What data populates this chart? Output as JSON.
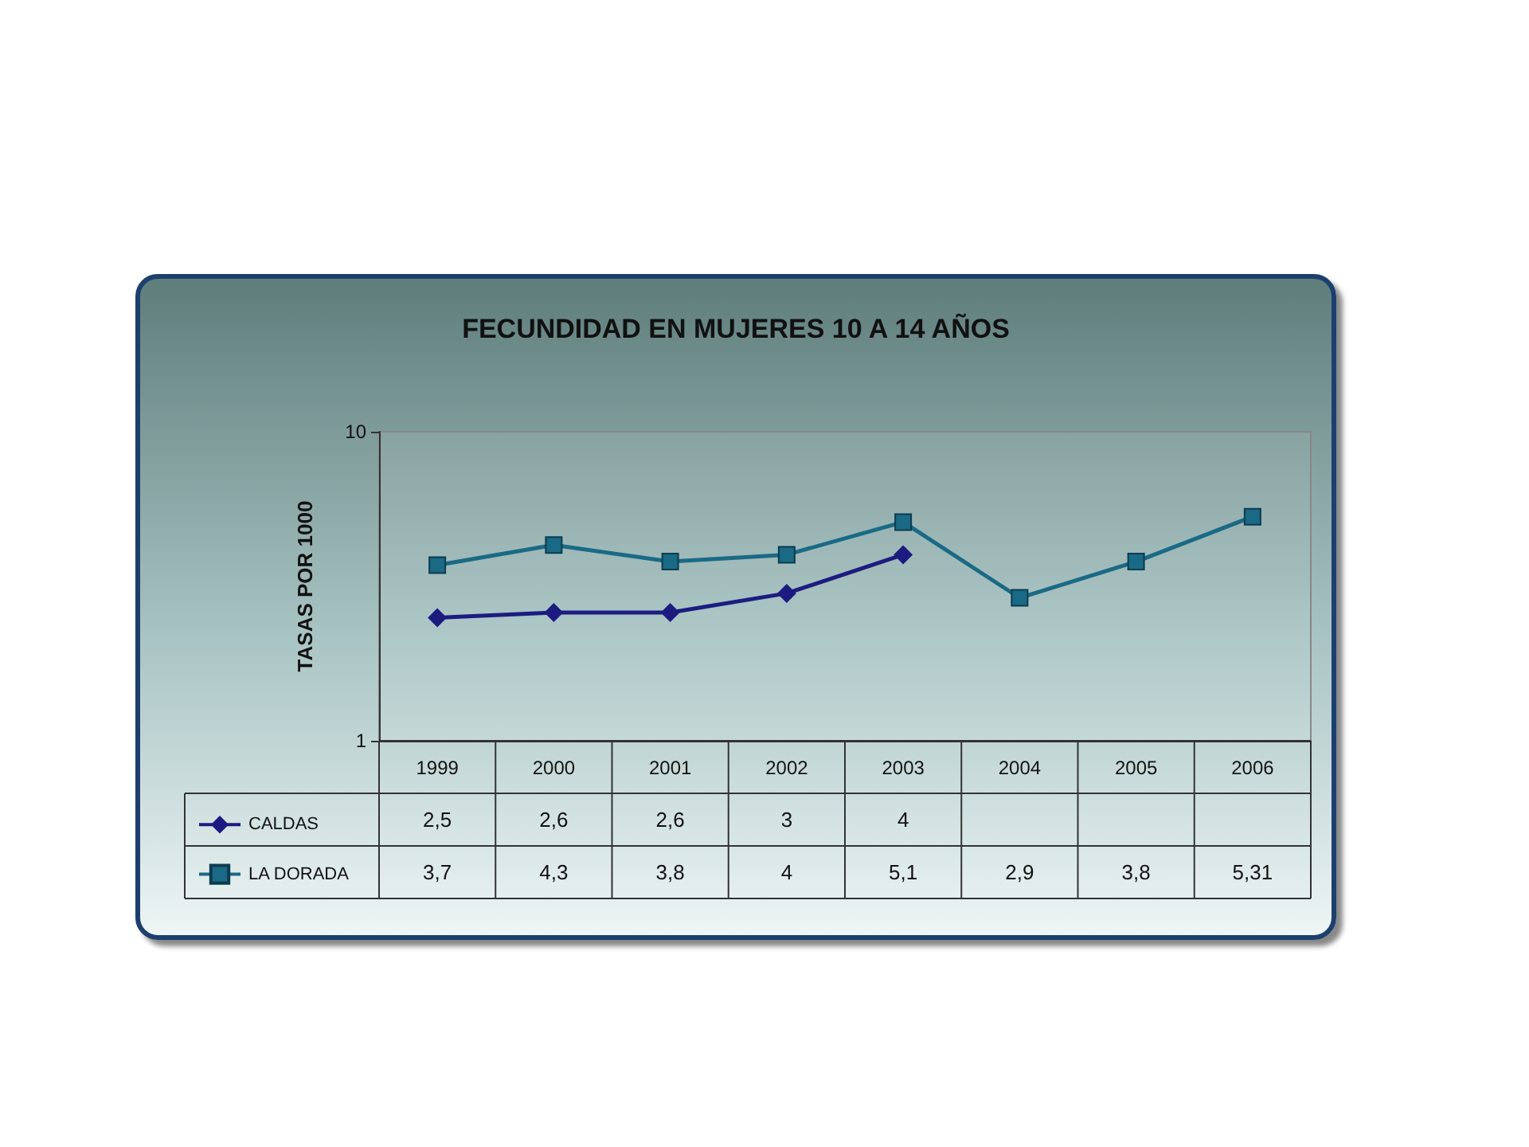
{
  "chart_data": {
    "type": "line",
    "title": "FECUNDIDAD EN MUJERES 10 A 14 AÑOS",
    "ylabel": "TASAS POR 1000",
    "categories": [
      "1999",
      "2000",
      "2001",
      "2002",
      "2003",
      "2004",
      "2005",
      "2006"
    ],
    "series": [
      {
        "name": "CALDAS",
        "color": "#1c1c80",
        "marker": "diamond",
        "values": [
          2.5,
          2.6,
          2.6,
          3,
          4,
          null,
          null,
          null
        ],
        "value_labels": [
          "2,5",
          "2,6",
          "2,6",
          "3",
          "4",
          null,
          null,
          null
        ]
      },
      {
        "name": "LA DORADA",
        "color": "#1a6a85",
        "marker": "square",
        "values": [
          3.7,
          4.3,
          3.8,
          4,
          5.1,
          2.9,
          3.8,
          5.31
        ],
        "value_labels": [
          "3,7",
          "4,3",
          "3,8",
          "4",
          "5,1",
          "2,9",
          "3,8",
          "5,31"
        ]
      }
    ],
    "log": true,
    "ylim": [
      1,
      10
    ],
    "yticks": [
      1,
      10
    ],
    "grid": false,
    "legend": "bottom left"
  }
}
